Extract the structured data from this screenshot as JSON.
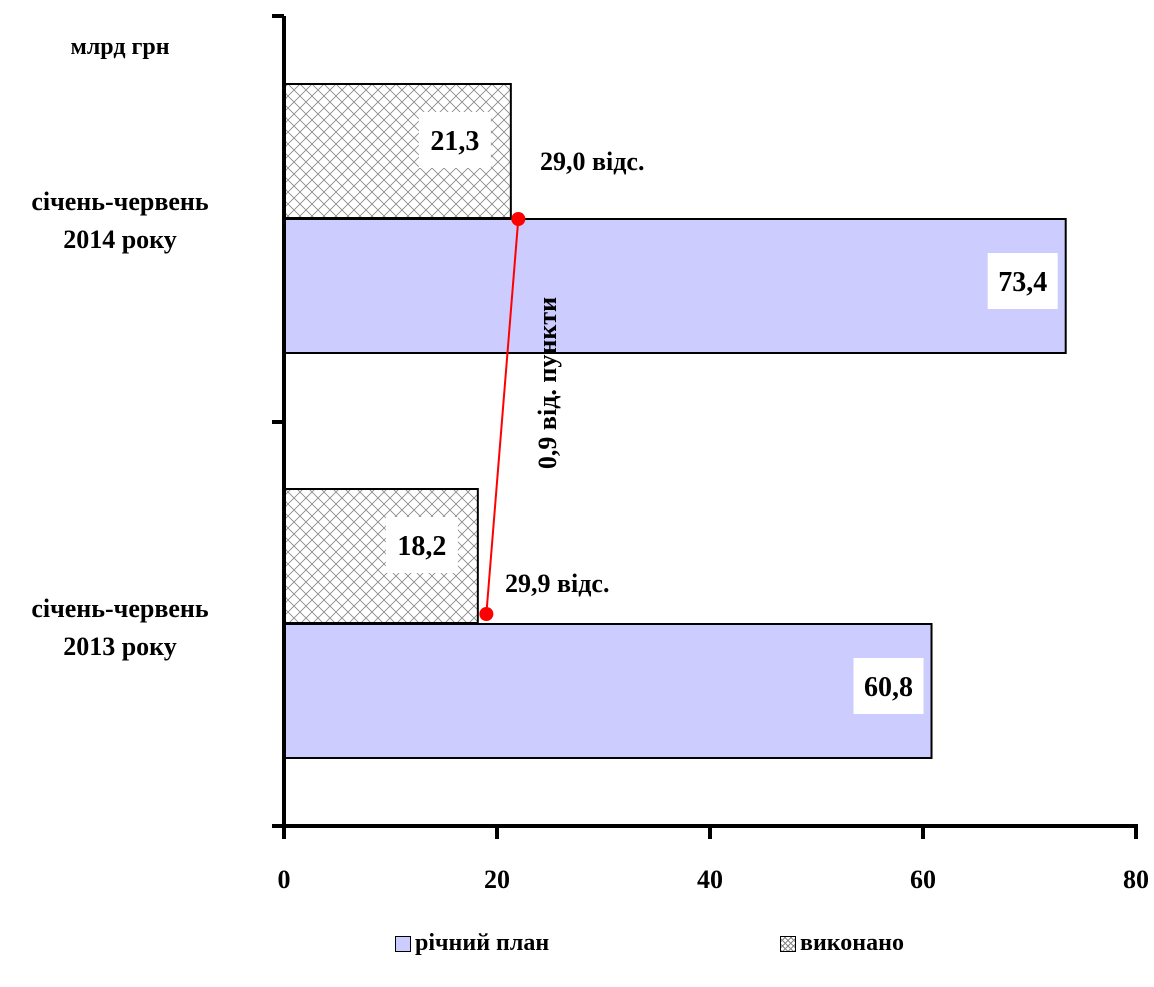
{
  "unit_label": "млрд грн",
  "colors": {
    "plan": "#CCCCFF",
    "done_hatch": "#888888",
    "connector": "#FF0000",
    "axis": "#000000"
  },
  "chart_data": {
    "type": "bar",
    "orientation": "horizontal",
    "categories": [
      "січень-червень 2014 року",
      "січень-червень 2013 року"
    ],
    "category_lines": [
      [
        "січень-червень",
        "2014 року"
      ],
      [
        "січень-червень",
        "2013 року"
      ]
    ],
    "series": [
      {
        "name": "річний план",
        "values": [
          73.4,
          60.8
        ],
        "labels": [
          "73,4",
          "60,8"
        ]
      },
      {
        "name": "виконано",
        "values": [
          21.3,
          18.2
        ],
        "labels": [
          "21,3",
          "18,2"
        ]
      }
    ],
    "percent_labels": [
      "29,0 відс.",
      "29,9 відс."
    ],
    "connector_points": [
      22,
      19
    ],
    "difference_label": "0,9 від. пункти",
    "xlim": [
      0,
      80
    ],
    "x_ticks": [
      0,
      20,
      40,
      60,
      80
    ],
    "x_tick_labels": [
      "0",
      "20",
      "40",
      "60",
      "80"
    ],
    "grid": false,
    "legend_position": "bottom"
  }
}
